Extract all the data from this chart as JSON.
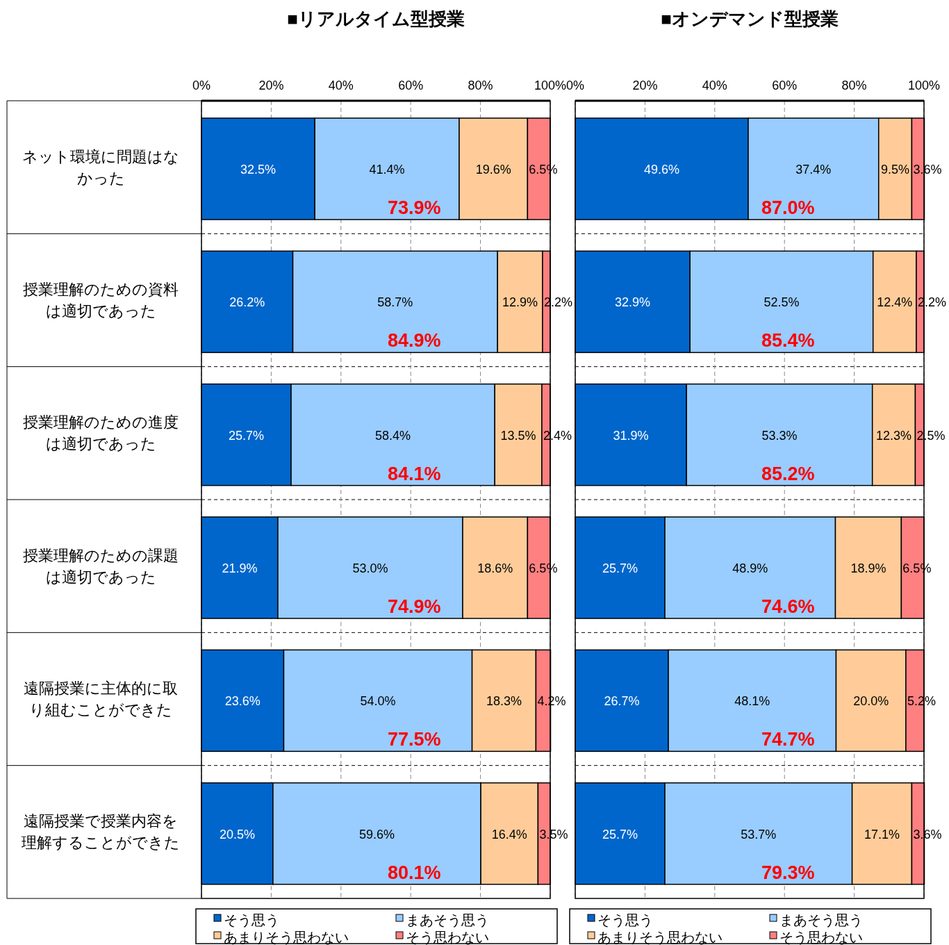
{
  "chart_data": [
    {
      "type": "bar",
      "orientation": "horizontal",
      "stacked": true,
      "title": "■リアルタイム型授業",
      "categories": [
        "ネット環境に問題はなかった",
        "授業理解のための資料は適切であった",
        "授業理解のための進度は適切であった",
        "授業理解のための課題は適切であった",
        "遠隔授業に主体的に取り組むことができた",
        "遠隔授業で授業内容を理解することができた"
      ],
      "series": [
        {
          "name": "そう思う",
          "color": "#0066cc",
          "values": [
            32.5,
            26.2,
            25.7,
            21.9,
            23.6,
            20.5
          ],
          "value_labels": [
            "32.5%",
            "26.2%",
            "25.7%",
            "21.9%",
            "23.6%",
            "20.5%"
          ]
        },
        {
          "name": "まあそう思う",
          "color": "#99ccff",
          "values": [
            41.4,
            58.7,
            58.4,
            53.0,
            54.0,
            59.6
          ],
          "value_labels": [
            "41.4%",
            "58.7%",
            "58.4%",
            "53.0%",
            "54.0%",
            "59.6%"
          ]
        },
        {
          "name": "あまりそう思わない",
          "color": "#ffcc99",
          "values": [
            19.6,
            12.9,
            13.5,
            18.6,
            18.3,
            16.4
          ],
          "value_labels": [
            "19.6%",
            "12.9%",
            "13.5%",
            "18.6%",
            "18.3%",
            "16.4%"
          ]
        },
        {
          "name": "そう思わない",
          "color": "#ff8080",
          "values": [
            6.5,
            2.2,
            2.4,
            6.5,
            4.2,
            3.5
          ],
          "value_labels": [
            "6.5%",
            "2.2%",
            "2.4%",
            "6.5%",
            "4.2%",
            "3.5%"
          ]
        }
      ],
      "annotations": [
        "73.9%",
        "84.9%",
        "84.1%",
        "74.9%",
        "77.5%",
        "80.1%"
      ],
      "xlim": [
        0,
        100
      ],
      "xticks": [
        {
          "value": 0,
          "label": "0%"
        },
        {
          "value": 20,
          "label": "20%"
        },
        {
          "value": 40,
          "label": "40%"
        },
        {
          "value": 60,
          "label": "60%"
        },
        {
          "value": 80,
          "label": "80%"
        },
        {
          "value": 100,
          "label": "100%"
        }
      ],
      "grid": "x",
      "legend": "bottom"
    },
    {
      "type": "bar",
      "orientation": "horizontal",
      "stacked": true,
      "title": "■オンデマンド型授業",
      "categories": [
        null,
        null,
        null,
        null,
        null,
        null
      ],
      "series": [
        {
          "name": "そう思う",
          "color": "#0066cc",
          "values": [
            49.6,
            32.9,
            31.9,
            25.7,
            26.7,
            25.7
          ],
          "value_labels": [
            "49.6%",
            "32.9%",
            "31.9%",
            "25.7%",
            "26.7%",
            "25.7%"
          ]
        },
        {
          "name": "まあそう思う",
          "color": "#99ccff",
          "values": [
            37.4,
            52.5,
            53.3,
            48.9,
            48.1,
            53.7
          ],
          "value_labels": [
            "37.4%",
            "52.5%",
            "53.3%",
            "48.9%",
            "48.1%",
            "53.7%"
          ]
        },
        {
          "name": "あまりそう思わない",
          "color": "#ffcc99",
          "values": [
            9.5,
            12.4,
            12.3,
            18.9,
            20.0,
            17.1
          ],
          "value_labels": [
            "9.5%",
            "12.4%",
            "12.3%",
            "18.9%",
            "20.0%",
            "17.1%"
          ]
        },
        {
          "name": "そう思わない",
          "color": "#ff8080",
          "values": [
            3.6,
            2.2,
            2.5,
            6.5,
            5.2,
            3.6
          ],
          "value_labels": [
            "3.6%",
            "2.2%",
            "2.5%",
            "6.5%",
            "5.2%",
            "3.6%"
          ]
        }
      ],
      "annotations": [
        "87.0%",
        "85.4%",
        "85.2%",
        "74.6%",
        "74.7%",
        "79.3%"
      ],
      "xlim": [
        0,
        100
      ],
      "xticks": [
        {
          "value": 0,
          "label": "0%"
        },
        {
          "value": 20,
          "label": "20%"
        },
        {
          "value": 40,
          "label": "40%"
        },
        {
          "value": 60,
          "label": "60%"
        },
        {
          "value": 80,
          "label": "80%"
        },
        {
          "value": 100,
          "label": "100%"
        }
      ],
      "grid": "x",
      "legend": "bottom",
      "tick_labels": "x"
    }
  ]
}
